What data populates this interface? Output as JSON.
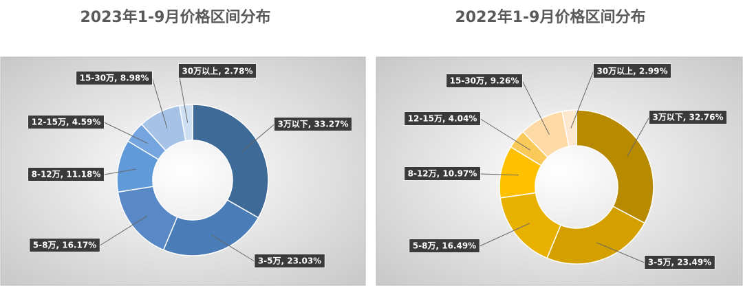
{
  "chart_data": [
    {
      "type": "donut",
      "title": "2023年1-9月价格区间分布",
      "values": [
        33.27,
        23.03,
        16.17,
        11.18,
        4.59,
        8.98,
        2.78
      ],
      "value_labels": [
        "3万以下, 33.27%",
        "3-5万, 23.03%",
        "5-8万, 16.17%",
        "8-12万, 11.18%",
        "12-15万, 4.59%",
        "15-30万, 8.98%",
        "30万以上, 2.78%"
      ],
      "colors": [
        "#3e6a97",
        "#4a7db8",
        "#5889c6",
        "#609ad8",
        "#74a5de",
        "#a6c2e6",
        "#cfdff2"
      ]
    },
    {
      "type": "donut",
      "title": "2022年1-9月价格区间分布",
      "values": [
        32.76,
        23.49,
        16.49,
        10.97,
        4.04,
        9.26,
        2.99
      ],
      "value_labels": [
        "3万以下, 32.76%",
        "3-5万, 23.49%",
        "5-8万, 16.49%",
        "8-12万, 10.97%",
        "12-15万, 4.04%",
        "15-30万, 9.26%",
        "30万以上, 2.99%"
      ],
      "colors": [
        "#b78a00",
        "#d3a000",
        "#e8b100",
        "#ffc000",
        "#f9c95a",
        "#fcd9a5",
        "#fde7cf"
      ]
    }
  ]
}
